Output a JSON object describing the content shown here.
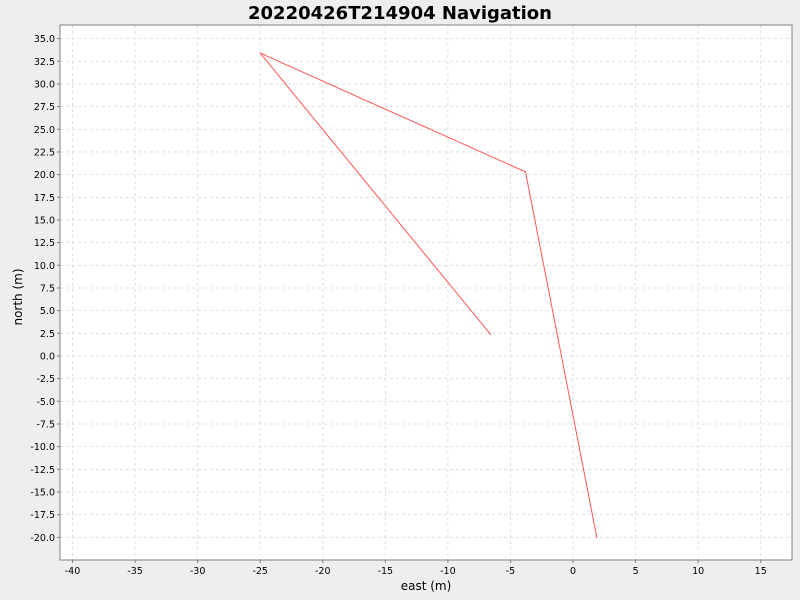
{
  "chart_data": {
    "type": "line",
    "title": "20220426T214904 Navigation",
    "xlabel": "east (m)",
    "ylabel": "north (m)",
    "xlim": [
      -41,
      17.5
    ],
    "ylim": [
      -22.5,
      36.5
    ],
    "x_ticks": [
      -40,
      -35,
      -30,
      -25,
      -20,
      -15,
      -10,
      -5,
      0,
      5,
      10,
      15
    ],
    "y_ticks": [
      35.0,
      32.5,
      30.0,
      27.5,
      25.0,
      22.5,
      20.0,
      17.5,
      15.0,
      12.5,
      10.0,
      7.5,
      5.0,
      2.5,
      0.0,
      -2.5,
      -5.0,
      -7.5,
      -10.0,
      -12.5,
      -15.0,
      -17.5,
      -20.0
    ],
    "x_tick_labels": [
      "-40",
      "-35",
      "-30",
      "-25",
      "-20",
      "-15",
      "-10",
      "-5",
      "0",
      "5",
      "10",
      "15"
    ],
    "y_tick_labels": [
      "35.0",
      "32.5",
      "30.0",
      "27.5",
      "25.0",
      "22.5",
      "20.0",
      "17.5",
      "15.0",
      "12.5",
      "10.0",
      "7.5",
      "5.0",
      "2.5",
      "0.0",
      "-2.5",
      "-5.0",
      "-7.5",
      "-10.0",
      "-12.5",
      "-15.0",
      "-17.5",
      "-20.0"
    ],
    "grid": true,
    "series": [
      {
        "color": "#ff5555",
        "points": [
          {
            "x": 1.9,
            "y": -20.0
          },
          {
            "x": -3.8,
            "y": 20.3
          },
          {
            "x": -25.0,
            "y": 33.4
          },
          {
            "x": -6.6,
            "y": 2.4
          }
        ]
      }
    ]
  },
  "colors": {
    "background": "#eeeeee",
    "plot_background": "#ffffff",
    "gridline": "#d8d8d8",
    "series_line": "#ff5555"
  }
}
